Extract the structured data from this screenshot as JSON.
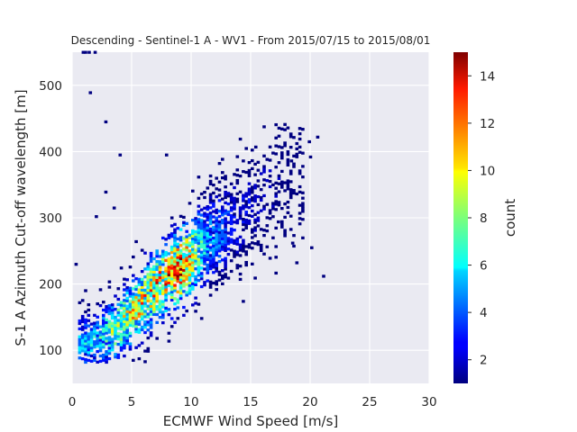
{
  "chart_data": {
    "type": "heatmap",
    "title": "Descending - Sentinel-1 A - WV1 - From 2015/07/15 to 2015/08/01",
    "xlabel": "ECMWF Wind Speed [m/s]",
    "ylabel": "S-1 A Azimuth Cut-off wavelength [m]",
    "xlim": [
      0,
      30
    ],
    "ylim": [
      50,
      550
    ],
    "xticks": [
      "0",
      "5",
      "10",
      "15",
      "20",
      "25",
      "30"
    ],
    "yticks": [
      "100",
      "200",
      "300",
      "400",
      "500"
    ],
    "colorbar": {
      "label": "count",
      "range": [
        1,
        15
      ],
      "ticks": [
        "2",
        "4",
        "6",
        "8",
        "10",
        "12",
        "14"
      ],
      "colormap": "jet"
    },
    "grid": true,
    "bin_width_x": 0.25,
    "bin_width_y": 4,
    "ridge": {
      "description": "density ridge of 2D histogram (approximate)",
      "points": [
        {
          "x": 1.5,
          "y": 110,
          "peak": 6
        },
        {
          "x": 3.5,
          "y": 130,
          "peak": 9
        },
        {
          "x": 5.5,
          "y": 165,
          "peak": 11
        },
        {
          "x": 7.5,
          "y": 205,
          "peak": 12
        },
        {
          "x": 9.0,
          "y": 225,
          "peak": 14
        },
        {
          "x": 11.0,
          "y": 255,
          "peak": 6
        },
        {
          "x": 13.5,
          "y": 290,
          "peak": 3
        },
        {
          "x": 16.0,
          "y": 330,
          "peak": 2
        },
        {
          "x": 18.5,
          "y": 370,
          "peak": 1
        }
      ]
    },
    "outliers": [
      {
        "x": 0.8,
        "y": 548,
        "count": 1
      },
      {
        "x": 1.0,
        "y": 548,
        "count": 1
      },
      {
        "x": 1.3,
        "y": 548,
        "count": 1
      },
      {
        "x": 1.8,
        "y": 548,
        "count": 1
      },
      {
        "x": 1.4,
        "y": 487,
        "count": 1
      },
      {
        "x": 2.7,
        "y": 443,
        "count": 1
      },
      {
        "x": 3.9,
        "y": 393,
        "count": 1
      },
      {
        "x": 2.7,
        "y": 337,
        "count": 1
      },
      {
        "x": 3.4,
        "y": 313,
        "count": 1
      },
      {
        "x": 1.9,
        "y": 300,
        "count": 1
      },
      {
        "x": 7.8,
        "y": 393,
        "count": 1
      },
      {
        "x": 14.0,
        "y": 417,
        "count": 1
      },
      {
        "x": 15.3,
        "y": 405,
        "count": 1
      },
      {
        "x": 19.8,
        "y": 413,
        "count": 1
      },
      {
        "x": 20.5,
        "y": 420,
        "count": 1
      },
      {
        "x": 19.9,
        "y": 390,
        "count": 1
      },
      {
        "x": 18.3,
        "y": 384,
        "count": 1
      },
      {
        "x": 20.0,
        "y": 253,
        "count": 1
      },
      {
        "x": 21.0,
        "y": 210,
        "count": 1
      },
      {
        "x": 18.4,
        "y": 260,
        "count": 1
      },
      {
        "x": 17.2,
        "y": 292,
        "count": 1
      },
      {
        "x": 0.2,
        "y": 228,
        "count": 1
      },
      {
        "x": 0.5,
        "y": 170,
        "count": 1
      }
    ]
  }
}
